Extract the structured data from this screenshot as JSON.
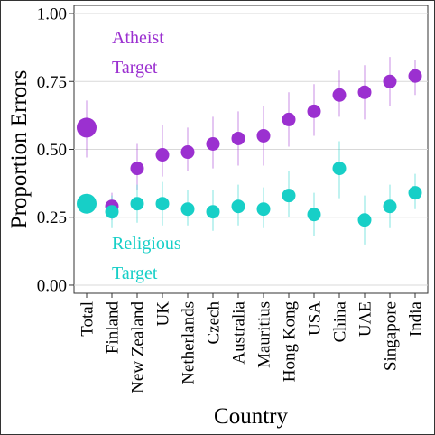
{
  "chart_data": {
    "type": "scatter",
    "xlabel": "Country",
    "ylabel": "Proportion Errors",
    "ylim": [
      -0.03,
      1.03
    ],
    "yticks": [
      0.0,
      0.25,
      0.5,
      0.75,
      1.0
    ],
    "ytick_labels": [
      "0.00",
      "0.25",
      "0.50",
      "0.75",
      "1.00"
    ],
    "grid": true,
    "categories": [
      "Total",
      "Finland",
      "New Zealand",
      "UK",
      "Netherlands",
      "Czech",
      "Australia",
      "Mauritius",
      "Hong Kong",
      "USA",
      "China",
      "UAE",
      "Singapore",
      "India"
    ],
    "annotations": [
      {
        "lines": [
          "Atheist",
          "Target"
        ],
        "color": "#9b30d0"
      },
      {
        "lines": [
          "Religious",
          "Target"
        ],
        "color": "#17cfc7"
      }
    ],
    "series": [
      {
        "color": "#9b30d0",
        "values": [
          0.58,
          0.29,
          0.43,
          0.48,
          0.49,
          0.52,
          0.54,
          0.55,
          0.61,
          0.64,
          0.7,
          0.71,
          0.75,
          0.77
        ],
        "lower": [
          0.47,
          0.24,
          0.35,
          0.4,
          0.42,
          0.43,
          0.44,
          0.44,
          0.51,
          0.55,
          0.62,
          0.61,
          0.66,
          0.7
        ],
        "upper": [
          0.68,
          0.34,
          0.52,
          0.59,
          0.58,
          0.62,
          0.64,
          0.66,
          0.71,
          0.74,
          0.79,
          0.81,
          0.84,
          0.83
        ]
      },
      {
        "color": "#17cfc7",
        "values": [
          0.3,
          0.27,
          0.3,
          0.3,
          0.28,
          0.27,
          0.29,
          0.28,
          0.33,
          0.26,
          0.43,
          0.24,
          0.29,
          0.34
        ],
        "lower": [
          0.27,
          0.21,
          0.23,
          0.22,
          0.22,
          0.2,
          0.22,
          0.21,
          0.25,
          0.18,
          0.32,
          0.15,
          0.21,
          0.28
        ],
        "upper": [
          0.33,
          0.33,
          0.37,
          0.38,
          0.35,
          0.35,
          0.37,
          0.36,
          0.42,
          0.34,
          0.53,
          0.33,
          0.37,
          0.41
        ]
      }
    ]
  }
}
